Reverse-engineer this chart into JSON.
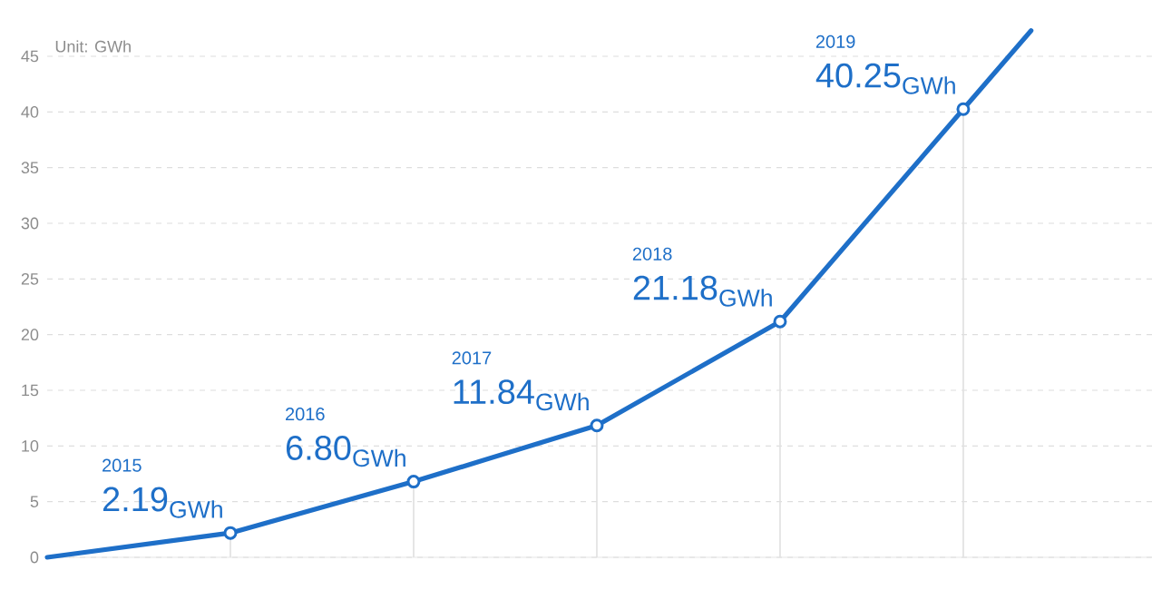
{
  "chart_data": {
    "type": "line",
    "categories": [
      null,
      null,
      null,
      null,
      null,
      null
    ],
    "ylim": [
      0,
      45
    ],
    "yticks": [
      0,
      5,
      10,
      15,
      20,
      25,
      30,
      35,
      40,
      45
    ],
    "tick_labels": "y",
    "grid": "y",
    "marker": "circle",
    "line_style": "solid",
    "annotations": [
      "Unit: GWh",
      "2015",
      "2016",
      "2017",
      "2018",
      "2019"
    ],
    "series": [
      {
        "color": "#1e6fc8",
        "values": [
          0,
          2.19,
          6.8,
          11.84,
          21.18,
          40.25
        ],
        "value_labels": [
          null,
          "2.19$_{GWh}$",
          "6.80$_{GWh}$",
          "11.84$_{GWh}$",
          "21.18$_{GWh}$",
          "40.25$_{GWh}$"
        ]
      }
    ]
  }
}
